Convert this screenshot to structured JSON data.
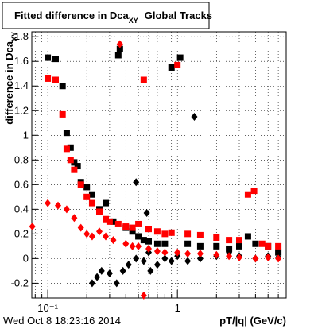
{
  "chart_data": {
    "type": "scatter",
    "title": {
      "main": "Fitted difference in Dca",
      "sub": "XY",
      "tail": "Global Tracks"
    },
    "y_label": {
      "main": "difference in Dca",
      "sub": "XY"
    },
    "x_label": "pT/|q| (GeV/c)",
    "timestamp": "Wed Oct  8 18:23:16 2014",
    "log_x": true,
    "grid": true,
    "xlim": [
      0.0753,
      6.9
    ],
    "ylim": [
      -0.32,
      1.84
    ],
    "xticks": [
      {
        "value": 0.1,
        "label": "10⁻¹"
      },
      1
    ],
    "x_minor_ticks": [
      0.08,
      0.09,
      0.2,
      0.3,
      0.4,
      0.5,
      0.6,
      0.7,
      0.8,
      0.9,
      2,
      3,
      4,
      5,
      6
    ],
    "yticks": [
      -0.2,
      0,
      0.2,
      0.4,
      0.6,
      0.8,
      1,
      1.2,
      1.4,
      1.6,
      1.8
    ],
    "series": [
      {
        "color": "#000000",
        "marker": "square",
        "x": [
          0.1,
          0.115,
          0.13,
          0.14,
          0.15,
          0.16,
          0.17,
          0.18,
          0.2,
          0.22,
          0.25,
          0.28,
          0.32,
          0.35,
          0.36,
          0.4,
          0.45,
          0.5,
          0.55,
          0.6,
          0.7,
          0.8,
          0.9,
          1.05,
          1.2,
          1.5,
          2,
          2.5,
          3,
          3.5,
          4,
          5,
          6
        ],
        "values": [
          1.63,
          1.62,
          1.4,
          1.02,
          0.9,
          0.78,
          0.75,
          0.62,
          0.58,
          0.52,
          0.4,
          0.45,
          0.3,
          1.65,
          1.7,
          0.25,
          0.22,
          0.18,
          0.15,
          0.14,
          0.12,
          0.12,
          1.55,
          1.63,
          0.12,
          0.1,
          0.1,
          0.08,
          0.1,
          0.18,
          0.12,
          0.1,
          0.05
        ]
      },
      {
        "color": "#ff0000",
        "marker": "square",
        "x": [
          0.1,
          0.115,
          0.13,
          0.14,
          0.15,
          0.16,
          0.18,
          0.2,
          0.22,
          0.25,
          0.28,
          0.3,
          0.35,
          0.4,
          0.45,
          0.5,
          0.55,
          0.6,
          0.7,
          0.8,
          0.9,
          1.0,
          1.2,
          1.5,
          2,
          2.5,
          3,
          3.5,
          3.9,
          4.5,
          5,
          6
        ],
        "values": [
          1.46,
          1.45,
          1.17,
          0.89,
          0.8,
          0.72,
          0.6,
          0.5,
          0.45,
          0.38,
          0.32,
          0.3,
          0.28,
          0.26,
          0.25,
          0.28,
          1.45,
          0.24,
          0.22,
          0.2,
          0.21,
          1.57,
          0.2,
          0.19,
          0.17,
          0.15,
          0.15,
          0.52,
          0.55,
          0.12,
          0.1,
          0.1
        ]
      },
      {
        "color": "#000000",
        "marker": "diamond",
        "x": [
          0.22,
          0.24,
          0.26,
          0.3,
          0.34,
          0.38,
          0.42,
          0.48,
          0.55,
          0.6,
          0.7,
          0.8,
          0.9,
          1.0,
          1.2,
          1.5,
          2,
          2.5,
          3,
          4,
          5,
          6,
          1.35,
          0.48,
          0.58,
          0.62
        ],
        "values": [
          -0.2,
          -0.15,
          -0.1,
          -0.12,
          -0.2,
          -0.1,
          -0.05,
          0,
          -0.02,
          0.05,
          -0.05,
          0,
          -0.02,
          0.02,
          -0.02,
          0,
          0.02,
          0.05,
          0.02,
          0,
          0.02,
          0.01,
          1.15,
          0.62,
          0.37,
          -0.1
        ]
      },
      {
        "color": "#ff0000",
        "marker": "diamond",
        "x": [
          0.076,
          0.1,
          0.12,
          0.14,
          0.16,
          0.18,
          0.2,
          0.22,
          0.25,
          0.28,
          0.32,
          0.36,
          0.4,
          0.45,
          0.5,
          0.55,
          0.6,
          0.7,
          0.8,
          1.0,
          1.2,
          1.5,
          2,
          2.5,
          3,
          4,
          5,
          6
        ],
        "values": [
          0.26,
          0.45,
          0.43,
          0.4,
          0.33,
          0.25,
          0.2,
          0.18,
          0.22,
          0.18,
          0.15,
          1.74,
          0.12,
          0.1,
          0.1,
          -0.3,
          0.08,
          0.06,
          0.05,
          0.05,
          0.04,
          0.04,
          0.03,
          0.02,
          0.01,
          0,
          0.01,
          0
        ]
      }
    ]
  }
}
